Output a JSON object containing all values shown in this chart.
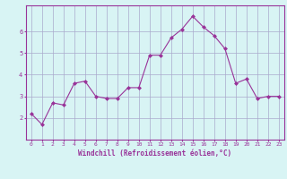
{
  "x": [
    0,
    1,
    2,
    3,
    4,
    5,
    6,
    7,
    8,
    9,
    10,
    11,
    12,
    13,
    14,
    15,
    16,
    17,
    18,
    19,
    20,
    21,
    22,
    23
  ],
  "y": [
    2.2,
    1.7,
    2.7,
    2.6,
    3.6,
    3.7,
    3.0,
    2.9,
    2.9,
    3.4,
    3.4,
    4.9,
    4.9,
    5.7,
    6.1,
    6.7,
    6.2,
    5.8,
    5.2,
    3.6,
    3.8,
    2.9,
    3.0,
    3.0
  ],
  "line_color": "#993399",
  "marker_color": "#993399",
  "bg_color": "#d8f4f4",
  "grid_color": "#aaaacc",
  "xlabel": "Windchill (Refroidissement éolien,°C)",
  "xlabel_color": "#993399",
  "tick_color": "#993399",
  "spine_color": "#993399",
  "ylim": [
    1.0,
    7.2
  ],
  "xlim": [
    -0.5,
    23.5
  ],
  "yticks": [
    2,
    3,
    4,
    5,
    6
  ],
  "xticks": [
    0,
    1,
    2,
    3,
    4,
    5,
    6,
    7,
    8,
    9,
    10,
    11,
    12,
    13,
    14,
    15,
    16,
    17,
    18,
    19,
    20,
    21,
    22,
    23
  ]
}
